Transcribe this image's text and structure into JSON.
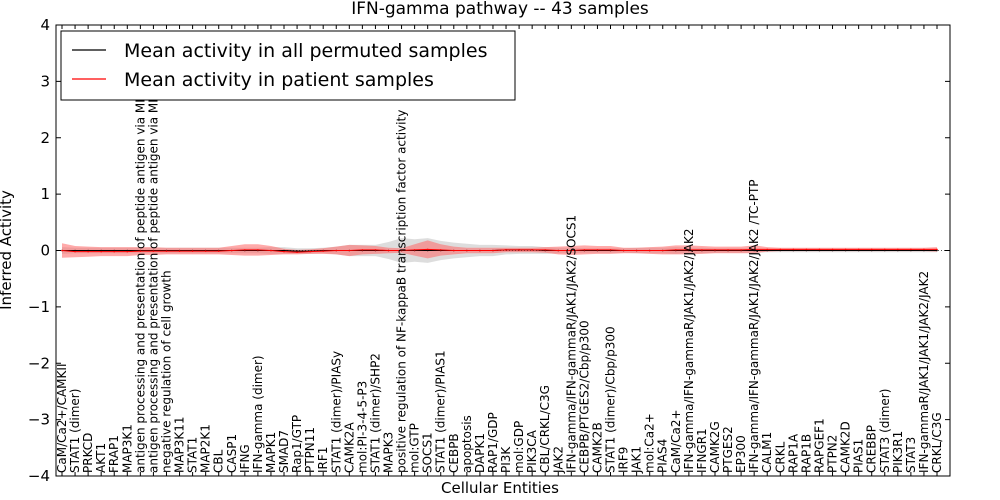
{
  "chart_data": {
    "type": "line",
    "title": "IFN-gamma pathway -- 43 samples",
    "xlabel": "Cellular Entities",
    "ylabel": "Inferred Activity",
    "ylim": [
      -4,
      4
    ],
    "yticks": [
      "4",
      "3",
      "2",
      "1",
      "0",
      "−1",
      "−2",
      "−3",
      "−4"
    ],
    "ytick_values": [
      4,
      3,
      2,
      1,
      0,
      -1,
      -2,
      -3,
      -4
    ],
    "legend_position": "top-left",
    "colors": {
      "permuted": "#000000",
      "patient": "#ff0000",
      "permuted_band": "#b4b4b4",
      "patient_band": "#ff6464",
      "axis": "#000000"
    },
    "categories": [
      "CaM/Ca2+/CAMKII",
      "STAT1 (dimer)",
      "PRKCD",
      "AKT1",
      "FRAP1",
      "MAP3K1",
      "antigen processing and presentation of peptide antigen via MHC class",
      "antigen processing and presentation of peptide antigen via MHC class",
      "negative regulation of cell growth",
      "MAP3K11",
      "STAT1",
      "MAP2K1",
      "CBL",
      "CASP1",
      "IFNG",
      "IFN-gamma (dimer)",
      "MAPK1",
      "SMAD7",
      "Rap1/GTP",
      "PTPN11",
      "IRF1",
      "STAT1 (dimer)/PIASy",
      "CAMK2A",
      "mol:PI-3-4-5-P3",
      "STAT1 (dimer)/SHP2",
      "MAPK3",
      "positive regulation of NF-kappaB transcription factor activity",
      "mol:GTP",
      "SOCS1",
      "STAT1 (dimer)/PIAS1",
      "CEBPB",
      "apoptosis",
      "DAPK1",
      "RAP1/GDP",
      "PI3K",
      "mol:GDP",
      "PIK3CA",
      "CBL/CRKL/C3G",
      "JAK2",
      "IFN-gamma/IFN-gammaR/JAK1/JAK2/SOCS1",
      "CEBPB/PTGES2/Cbp/p300",
      "CAMK2B",
      "STAT1 (dimer)/Cbp/p300",
      "IRF9",
      "JAK1",
      "mol:Ca2+",
      "PIAS4",
      "CaM/Ca2+",
      "IFN-gamma/IFN-gammaR/JAK1/JAK2/JAK2",
      "IFNGR1",
      "CAMK2G",
      "PTGES2",
      "EP300",
      "IFN-gamma/IFN-gammaR/JAK1/JAK2/JAK2  /TC-PTP",
      "CALM1",
      "CRKL",
      "RAP1A",
      "RAP1B",
      "RAPGEF1",
      "PTPN2",
      "CAMK2D",
      "PIAS1",
      "CREBBP",
      "STAT3 (dimer)",
      "PIK3R1",
      "STAT3",
      "IFN-gammaR/JAK1/JAK1/JAK2/JAK2",
      "CRKL/C3G"
    ],
    "series": [
      {
        "name": "Mean activity in all permuted samples",
        "color": "#000000",
        "values": [
          0,
          0,
          0,
          0,
          0,
          0,
          0,
          0,
          0,
          0,
          0,
          0,
          0,
          0,
          0,
          0,
          0,
          0,
          -0.01,
          -0.01,
          0,
          0,
          0,
          0,
          0,
          0,
          0,
          0,
          0,
          0,
          0,
          0,
          0,
          0,
          0.01,
          0.01,
          0.01,
          0,
          0,
          0,
          0,
          0,
          0,
          0,
          0,
          0,
          0,
          0,
          0,
          0,
          0,
          0,
          0,
          0,
          0,
          0,
          0,
          0,
          0,
          0,
          0,
          0,
          0,
          0,
          0,
          0,
          0,
          0
        ],
        "spread": [
          0.06,
          0.05,
          0.05,
          0.05,
          0.05,
          0.05,
          0.05,
          0.05,
          0.05,
          0.05,
          0.05,
          0.05,
          0.05,
          0.05,
          0.05,
          0.05,
          0.06,
          0.06,
          0.05,
          0.05,
          0.05,
          0.07,
          0.1,
          0.1,
          0.1,
          0.15,
          0.22,
          0.2,
          0.22,
          0.17,
          0.14,
          0.12,
          0.1,
          0.1,
          0.08,
          0.07,
          0.07,
          0.06,
          0.05,
          0.05,
          0.04,
          0.04,
          0.04,
          0.04,
          0.05,
          0.05,
          0.05,
          0.06,
          0.05,
          0.05,
          0.04,
          0.04,
          0.04,
          0.04,
          0.03,
          0.03,
          0.03,
          0.03,
          0.03,
          0.03,
          0.03,
          0.03,
          0.03,
          0.03,
          0.03,
          0.03,
          0.03,
          0.03
        ]
      },
      {
        "name": "Mean activity in patient samples",
        "color": "#ff0000",
        "values": [
          0,
          -0.02,
          -0.02,
          -0.02,
          -0.02,
          -0.02,
          -0.01,
          -0.01,
          -0.01,
          -0.01,
          -0.01,
          -0.01,
          -0.01,
          0,
          0.01,
          0.01,
          0,
          -0.02,
          -0.03,
          -0.02,
          -0.01,
          0,
          0,
          0.01,
          0.01,
          0,
          0,
          0.01,
          0.02,
          0.01,
          0,
          0,
          0,
          0,
          0.01,
          0.01,
          0.01,
          0.01,
          0,
          0,
          0.01,
          0.01,
          0.01,
          0,
          0,
          0,
          0,
          0.01,
          0.01,
          0.01,
          0.01,
          0.01,
          0.01,
          0.02,
          0.02,
          0.02,
          0.02,
          0.02,
          0.02,
          0.02,
          0.02,
          0.02,
          0.02,
          0.02,
          0.02,
          0.02,
          0.02,
          0.02
        ],
        "spread": [
          0.13,
          0.1,
          0.09,
          0.08,
          0.08,
          0.08,
          0.07,
          0.07,
          0.06,
          0.06,
          0.06,
          0.06,
          0.06,
          0.08,
          0.1,
          0.1,
          0.08,
          0.05,
          0.04,
          0.04,
          0.05,
          0.07,
          0.1,
          0.08,
          0.07,
          0.05,
          0.04,
          0.1,
          0.16,
          0.1,
          0.07,
          0.05,
          0.05,
          0.05,
          0.04,
          0.04,
          0.04,
          0.05,
          0.07,
          0.08,
          0.08,
          0.07,
          0.07,
          0.05,
          0.05,
          0.06,
          0.07,
          0.08,
          0.08,
          0.07,
          0.06,
          0.06,
          0.06,
          0.07,
          0.04,
          0.03,
          0.03,
          0.03,
          0.03,
          0.03,
          0.03,
          0.03,
          0.03,
          0.03,
          0.03,
          0.03,
          0.03,
          0.04
        ]
      }
    ]
  }
}
